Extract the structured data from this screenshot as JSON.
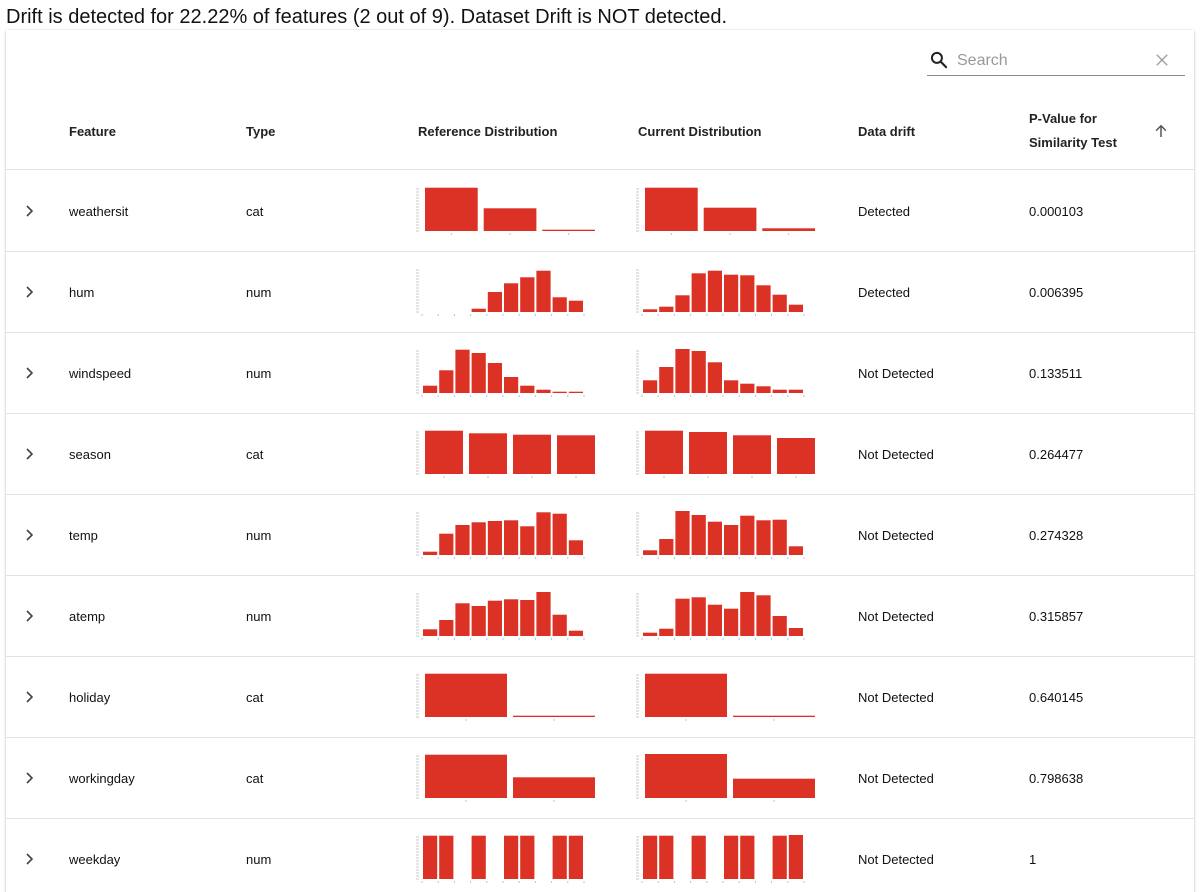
{
  "summary": "Drift is detected for 22.22% of features (2 out of 9). Dataset Drift is NOT detected.",
  "search": {
    "placeholder": "Search",
    "value": "",
    "search_icon": "search-icon",
    "clear_icon": "close-icon"
  },
  "columns": {
    "feature": "Feature",
    "type": "Type",
    "reference": "Reference Distribution",
    "current": "Current Distribution",
    "drift": "Data drift",
    "pvalue_line1": "P-Value for",
    "pvalue_line2": "Similarity Test",
    "sort_icon": "arrow-up-icon"
  },
  "colors": {
    "bar": "#dc3125",
    "axis": "#bdbdbd",
    "border": "#e2e2e2"
  },
  "rows": [
    {
      "feature": "weathersit",
      "type": "cat",
      "drift": "Detected",
      "pvalue": "0.000103",
      "kind": "cat",
      "ref": [
        65,
        34,
        2
      ],
      "cur": [
        65,
        35,
        4
      ]
    },
    {
      "feature": "hum",
      "type": "num",
      "drift": "Detected",
      "pvalue": "0.006395",
      "kind": "num",
      "ref": [
        0,
        0,
        0,
        5,
        30,
        43,
        52,
        62,
        22,
        17
      ],
      "cur": [
        4,
        8,
        25,
        58,
        62,
        56,
        55,
        40,
        26,
        11
      ]
    },
    {
      "feature": "windspeed",
      "type": "num",
      "drift": "Not Detected",
      "pvalue": "0.133511",
      "kind": "num",
      "ref": [
        11,
        34,
        65,
        60,
        45,
        24,
        11,
        5,
        2,
        2
      ],
      "cur": [
        19,
        39,
        66,
        63,
        46,
        19,
        14,
        10,
        5,
        5
      ]
    },
    {
      "feature": "season",
      "type": "cat",
      "drift": "Not Detected",
      "pvalue": "0.264477",
      "kind": "cat",
      "ref": [
        65,
        61,
        59,
        58
      ],
      "cur": [
        65,
        63,
        58,
        54
      ]
    },
    {
      "feature": "temp",
      "type": "num",
      "drift": "Not Detected",
      "pvalue": "0.274328",
      "kind": "num",
      "ref": [
        5,
        32,
        45,
        49,
        51,
        52,
        43,
        64,
        62,
        22
      ],
      "cur": [
        7,
        24,
        66,
        60,
        50,
        45,
        59,
        52,
        53,
        13
      ]
    },
    {
      "feature": "atemp",
      "type": "num",
      "drift": "Not Detected",
      "pvalue": "0.315857",
      "kind": "num",
      "ref": [
        10,
        24,
        49,
        45,
        53,
        55,
        54,
        66,
        32,
        8
      ],
      "cur": [
        5,
        11,
        56,
        58,
        47,
        41,
        66,
        61,
        30,
        12
      ]
    },
    {
      "feature": "holiday",
      "type": "cat",
      "drift": "Not Detected",
      "pvalue": "0.640145",
      "kind": "cat",
      "ref": [
        65,
        2
      ],
      "cur": [
        65,
        2
      ]
    },
    {
      "feature": "workingday",
      "type": "cat",
      "drift": "Not Detected",
      "pvalue": "0.798638",
      "kind": "cat",
      "ref": [
        65,
        31
      ],
      "cur": [
        66,
        29
      ]
    },
    {
      "feature": "weekday",
      "type": "num",
      "drift": "Not Detected",
      "pvalue": "1",
      "kind": "num",
      "ref": [
        65,
        65,
        0,
        65,
        0,
        65,
        65,
        0,
        65,
        65
      ],
      "cur": [
        65,
        65,
        0,
        65,
        0,
        65,
        65,
        0,
        65,
        68
      ]
    }
  ]
}
